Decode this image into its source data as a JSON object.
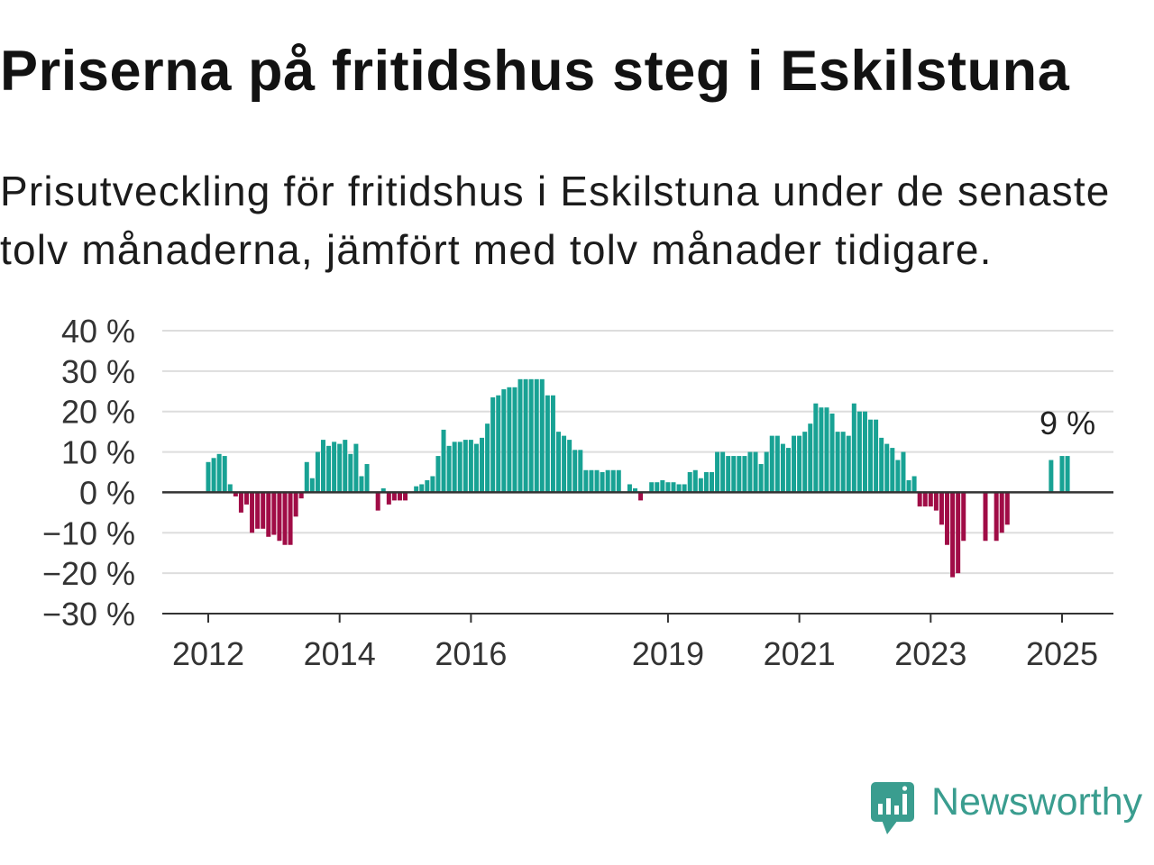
{
  "title": "Priserna på fritidshus steg i Eskilstuna",
  "subtitle": "Prisutveckling för fritidshus i Eskilstuna under de senaste tolv månaderna, jämfört med tolv månader tidigare.",
  "chart_data": {
    "type": "bar",
    "categories": [
      "2012-01",
      "2012-02",
      "2012-03",
      "2012-04",
      "2012-05",
      "2012-06",
      "2012-07",
      "2012-08",
      "2012-09",
      "2012-10",
      "2012-11",
      "2012-12",
      "2013-01",
      "2013-02",
      "2013-03",
      "2013-04",
      "2013-05",
      "2013-06",
      "2013-07",
      "2013-08",
      "2013-09",
      "2013-10",
      "2013-11",
      "2013-12",
      "2014-01",
      "2014-02",
      "2014-03",
      "2014-04",
      "2014-05",
      "2014-06",
      "2014-07",
      "2014-08",
      "2014-09",
      "2014-10",
      "2014-11",
      "2014-12",
      "2015-01",
      "2015-02",
      "2015-03",
      "2015-04",
      "2015-05",
      "2015-06",
      "2015-07",
      "2015-08",
      "2015-09",
      "2015-10",
      "2015-11",
      "2015-12",
      "2016-01",
      "2016-02",
      "2016-03",
      "2016-04",
      "2016-05",
      "2016-06",
      "2016-07",
      "2016-08",
      "2016-09",
      "2016-10",
      "2016-11",
      "2016-12",
      "2017-01",
      "2017-02",
      "2017-03",
      "2017-04",
      "2017-05",
      "2017-06",
      "2017-07",
      "2017-08",
      "2017-09",
      "2017-10",
      "2017-11",
      "2017-12",
      "2018-01",
      "2018-02",
      "2018-03",
      "2018-04",
      "2018-05",
      "2018-06",
      "2018-07",
      "2018-08",
      "2018-09",
      "2018-10",
      "2018-11",
      "2018-12",
      "2019-01",
      "2019-02",
      "2019-03",
      "2019-04",
      "2019-05",
      "2019-06",
      "2019-07",
      "2019-08",
      "2019-09",
      "2019-10",
      "2019-11",
      "2019-12",
      "2020-01",
      "2020-02",
      "2020-03",
      "2020-04",
      "2020-05",
      "2020-06",
      "2020-07",
      "2020-08",
      "2020-09",
      "2020-10",
      "2020-11",
      "2020-12",
      "2021-01",
      "2021-02",
      "2021-03",
      "2021-04",
      "2021-05",
      "2021-06",
      "2021-07",
      "2021-08",
      "2021-09",
      "2021-10",
      "2021-11",
      "2021-12",
      "2022-01",
      "2022-02",
      "2022-03",
      "2022-04",
      "2022-05",
      "2022-06",
      "2022-07",
      "2022-08",
      "2022-09",
      "2022-10",
      "2022-11",
      "2022-12",
      "2023-01",
      "2023-02",
      "2023-03",
      "2023-04",
      "2023-05",
      "2023-06",
      "2023-07",
      "2023-08",
      "2023-09",
      "2023-10",
      "2023-11",
      "2023-12",
      "2024-01",
      "2024-02",
      "2024-03",
      "2024-04",
      "2024-05",
      "2024-06",
      "2024-07",
      "2024-08",
      "2024-09",
      "2024-10",
      "2024-11",
      "2024-12",
      "2025-01",
      "2025-02"
    ],
    "values": [
      7.5,
      8.5,
      9.5,
      9,
      2,
      -1,
      -5,
      -3,
      -10,
      -9,
      -9,
      -11,
      -10.5,
      -12,
      -13,
      -13,
      -6,
      -1.5,
      7.5,
      3.5,
      10,
      13,
      11.5,
      12.5,
      12,
      13,
      9.5,
      12,
      4,
      7,
      null,
      -4.5,
      1,
      -3,
      -2,
      -2,
      -2,
      null,
      1.5,
      2,
      3,
      4,
      9,
      15.5,
      11.5,
      12.5,
      12.5,
      13,
      13,
      12,
      13.5,
      17,
      23.5,
      24,
      25.5,
      26,
      26,
      28,
      28,
      28,
      28,
      28,
      24,
      24,
      15,
      14,
      13,
      10.5,
      10.5,
      5.5,
      5.5,
      5.5,
      5,
      5.5,
      5.5,
      5.5,
      null,
      2,
      1,
      -2,
      null,
      2.5,
      2.5,
      3,
      2.5,
      2.5,
      2,
      2,
      5,
      5.5,
      3.5,
      5,
      5,
      10,
      10,
      9,
      9,
      9,
      9,
      10,
      10,
      7,
      10,
      14,
      14,
      12,
      11,
      14,
      14,
      15,
      17,
      22,
      21,
      21,
      19.5,
      15,
      15,
      14,
      22,
      20,
      20,
      18,
      18,
      13.5,
      12,
      11,
      8,
      10,
      3,
      4,
      -3.5,
      -3.5,
      -3.5,
      -4.5,
      -8,
      -13,
      -21,
      -20,
      -12,
      null,
      null,
      null,
      -12,
      null,
      -12,
      -10,
      -8,
      null,
      null,
      null,
      null,
      null,
      null,
      null,
      8,
      null,
      9,
      9
    ],
    "ylim": [
      -30,
      40
    ],
    "y_ticks": [
      40,
      30,
      20,
      10,
      0,
      -10,
      -20,
      -30
    ],
    "y_tick_labels": [
      "40 %",
      "30 %",
      "20 %",
      "10 %",
      "0 %",
      "−10 %",
      "−20 %",
      "−30 %"
    ],
    "x_ticks": [
      "2012-01",
      "2014-01",
      "2016-01",
      "2019-01",
      "2021-01",
      "2023-01",
      "2025-01"
    ],
    "x_tick_labels": [
      "2012",
      "2014",
      "2016",
      "2019",
      "2021",
      "2023",
      "2025"
    ],
    "grid": true,
    "annotations": [
      {
        "x": "2025-02",
        "value": 9,
        "text": "9 %"
      }
    ],
    "colors": {
      "positive": "#18a294",
      "negative": "#a00c46"
    }
  },
  "logo": {
    "name": "Newsworthy",
    "icon": "newsworthy-bar-chart-bubble-icon",
    "color": "#3a9d8f"
  }
}
